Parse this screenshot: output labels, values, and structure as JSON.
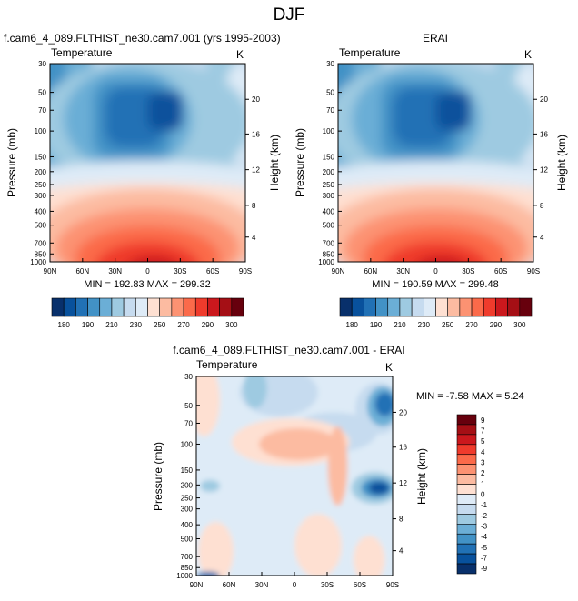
{
  "figure": {
    "title": "DJF"
  },
  "colors": {
    "abs_levels": [
      "#08306b",
      "#08519c",
      "#2171b5",
      "#4292c6",
      "#6baed6",
      "#9ecae1",
      "#c6dbef",
      "#deebf7",
      "#fee0d2",
      "#fcbba1",
      "#fc9272",
      "#fb6a4a",
      "#ef3b2c",
      "#cb181d",
      "#a50f15",
      "#67000d"
    ],
    "diff_levels": [
      "#08306b",
      "#08519c",
      "#2171b5",
      "#4292c6",
      "#6baed6",
      "#9ecae1",
      "#c6dbef",
      "#deebf7",
      "#fee0d2",
      "#fcbba1",
      "#fc9272",
      "#fb6a4a",
      "#ef3b2c",
      "#cb181d",
      "#a50f15",
      "#67000d"
    ]
  },
  "chart_data": [
    {
      "type": "heatmap",
      "panel": "model",
      "title": "f.cam6_4_089.FLTHIST_ne30.cam7.001 (yrs 1995-2003)",
      "left_label": "Temperature",
      "right_label": "K",
      "ylabel": "Pressure (mb)",
      "ylabel_right": "Height (km)",
      "x_ticks": [
        "90N",
        "60N",
        "30N",
        "0",
        "30S",
        "60S",
        "90S"
      ],
      "y_ticks": [
        "30",
        "50",
        "70",
        "100",
        "150",
        "200",
        "250",
        "300",
        "400",
        "500",
        "700",
        "850",
        "1000"
      ],
      "height_ticks": [
        "20",
        "16",
        "12",
        "8",
        "4"
      ],
      "min_max_text": "MIN = 192.83   MAX = 299.32",
      "min": 192.83,
      "max": 299.32,
      "colorbar_labels": [
        "180",
        "190",
        "210",
        "230",
        "250",
        "270",
        "290",
        "300"
      ]
    },
    {
      "type": "heatmap",
      "panel": "obs",
      "title": "ERAI",
      "left_label": "Temperature",
      "right_label": "K",
      "ylabel": "Pressure (mb)",
      "ylabel_right": "Height (km)",
      "x_ticks": [
        "90N",
        "60N",
        "30N",
        "0",
        "30S",
        "60S",
        "90S"
      ],
      "y_ticks": [
        "30",
        "50",
        "70",
        "100",
        "150",
        "200",
        "250",
        "300",
        "400",
        "500",
        "700",
        "850",
        "1000"
      ],
      "height_ticks": [
        "20",
        "16",
        "12",
        "8",
        "4"
      ],
      "min_max_text": "MIN = 190.59   MAX = 299.48",
      "min": 190.59,
      "max": 299.48,
      "colorbar_labels": [
        "180",
        "190",
        "210",
        "230",
        "250",
        "270",
        "290",
        "300"
      ]
    },
    {
      "type": "heatmap",
      "panel": "diff",
      "title": "f.cam6_4_089.FLTHIST_ne30.cam7.001 - ERAI",
      "left_label": "Temperature",
      "right_label": "K",
      "ylabel": "Pressure (mb)",
      "ylabel_right": "Height (km)",
      "x_ticks": [
        "90N",
        "60N",
        "30N",
        "0",
        "30S",
        "60S",
        "90S"
      ],
      "y_ticks": [
        "30",
        "50",
        "70",
        "100",
        "150",
        "200",
        "250",
        "300",
        "400",
        "500",
        "700",
        "850",
        "1000"
      ],
      "height_ticks": [
        "20",
        "16",
        "12",
        "8",
        "4"
      ],
      "min_max_text": "MIN = -7.58   MAX =  5.24",
      "min": -7.58,
      "max": 5.24,
      "colorbar_labels": [
        "9",
        "7",
        "5",
        "4",
        "3",
        "2",
        "1",
        "0",
        "-1",
        "-2",
        "-3",
        "-4",
        "-5",
        "-7",
        "-9"
      ]
    }
  ]
}
